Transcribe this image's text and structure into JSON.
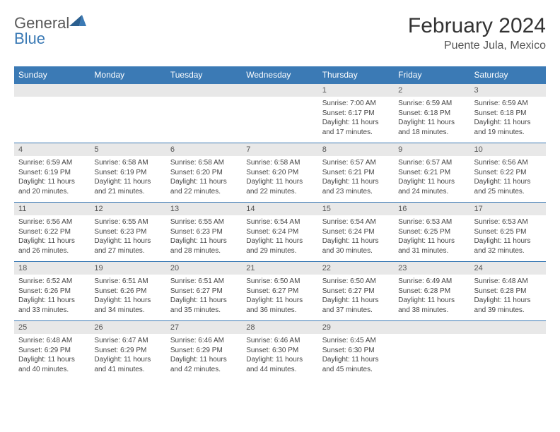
{
  "brand": {
    "part1": "General",
    "part2": "Blue"
  },
  "title": "February 2024",
  "location": "Puente Jula, Mexico",
  "colors": {
    "header_bg": "#3b7ab5",
    "header_text": "#ffffff",
    "daynum_bg": "#e8e8e8",
    "text": "#444444",
    "border": "#3b7ab5"
  },
  "weekdays": [
    "Sunday",
    "Monday",
    "Tuesday",
    "Wednesday",
    "Thursday",
    "Friday",
    "Saturday"
  ],
  "weeks": [
    [
      null,
      null,
      null,
      null,
      {
        "n": "1",
        "sr": "7:00 AM",
        "ss": "6:17 PM",
        "dl": "11 hours and 17 minutes."
      },
      {
        "n": "2",
        "sr": "6:59 AM",
        "ss": "6:18 PM",
        "dl": "11 hours and 18 minutes."
      },
      {
        "n": "3",
        "sr": "6:59 AM",
        "ss": "6:18 PM",
        "dl": "11 hours and 19 minutes."
      }
    ],
    [
      {
        "n": "4",
        "sr": "6:59 AM",
        "ss": "6:19 PM",
        "dl": "11 hours and 20 minutes."
      },
      {
        "n": "5",
        "sr": "6:58 AM",
        "ss": "6:19 PM",
        "dl": "11 hours and 21 minutes."
      },
      {
        "n": "6",
        "sr": "6:58 AM",
        "ss": "6:20 PM",
        "dl": "11 hours and 22 minutes."
      },
      {
        "n": "7",
        "sr": "6:58 AM",
        "ss": "6:20 PM",
        "dl": "11 hours and 22 minutes."
      },
      {
        "n": "8",
        "sr": "6:57 AM",
        "ss": "6:21 PM",
        "dl": "11 hours and 23 minutes."
      },
      {
        "n": "9",
        "sr": "6:57 AM",
        "ss": "6:21 PM",
        "dl": "11 hours and 24 minutes."
      },
      {
        "n": "10",
        "sr": "6:56 AM",
        "ss": "6:22 PM",
        "dl": "11 hours and 25 minutes."
      }
    ],
    [
      {
        "n": "11",
        "sr": "6:56 AM",
        "ss": "6:22 PM",
        "dl": "11 hours and 26 minutes."
      },
      {
        "n": "12",
        "sr": "6:55 AM",
        "ss": "6:23 PM",
        "dl": "11 hours and 27 minutes."
      },
      {
        "n": "13",
        "sr": "6:55 AM",
        "ss": "6:23 PM",
        "dl": "11 hours and 28 minutes."
      },
      {
        "n": "14",
        "sr": "6:54 AM",
        "ss": "6:24 PM",
        "dl": "11 hours and 29 minutes."
      },
      {
        "n": "15",
        "sr": "6:54 AM",
        "ss": "6:24 PM",
        "dl": "11 hours and 30 minutes."
      },
      {
        "n": "16",
        "sr": "6:53 AM",
        "ss": "6:25 PM",
        "dl": "11 hours and 31 minutes."
      },
      {
        "n": "17",
        "sr": "6:53 AM",
        "ss": "6:25 PM",
        "dl": "11 hours and 32 minutes."
      }
    ],
    [
      {
        "n": "18",
        "sr": "6:52 AM",
        "ss": "6:26 PM",
        "dl": "11 hours and 33 minutes."
      },
      {
        "n": "19",
        "sr": "6:51 AM",
        "ss": "6:26 PM",
        "dl": "11 hours and 34 minutes."
      },
      {
        "n": "20",
        "sr": "6:51 AM",
        "ss": "6:27 PM",
        "dl": "11 hours and 35 minutes."
      },
      {
        "n": "21",
        "sr": "6:50 AM",
        "ss": "6:27 PM",
        "dl": "11 hours and 36 minutes."
      },
      {
        "n": "22",
        "sr": "6:50 AM",
        "ss": "6:27 PM",
        "dl": "11 hours and 37 minutes."
      },
      {
        "n": "23",
        "sr": "6:49 AM",
        "ss": "6:28 PM",
        "dl": "11 hours and 38 minutes."
      },
      {
        "n": "24",
        "sr": "6:48 AM",
        "ss": "6:28 PM",
        "dl": "11 hours and 39 minutes."
      }
    ],
    [
      {
        "n": "25",
        "sr": "6:48 AM",
        "ss": "6:29 PM",
        "dl": "11 hours and 40 minutes."
      },
      {
        "n": "26",
        "sr": "6:47 AM",
        "ss": "6:29 PM",
        "dl": "11 hours and 41 minutes."
      },
      {
        "n": "27",
        "sr": "6:46 AM",
        "ss": "6:29 PM",
        "dl": "11 hours and 42 minutes."
      },
      {
        "n": "28",
        "sr": "6:46 AM",
        "ss": "6:30 PM",
        "dl": "11 hours and 44 minutes."
      },
      {
        "n": "29",
        "sr": "6:45 AM",
        "ss": "6:30 PM",
        "dl": "11 hours and 45 minutes."
      },
      null,
      null
    ]
  ],
  "labels": {
    "sunrise": "Sunrise: ",
    "sunset": "Sunset: ",
    "daylight": "Daylight: "
  }
}
